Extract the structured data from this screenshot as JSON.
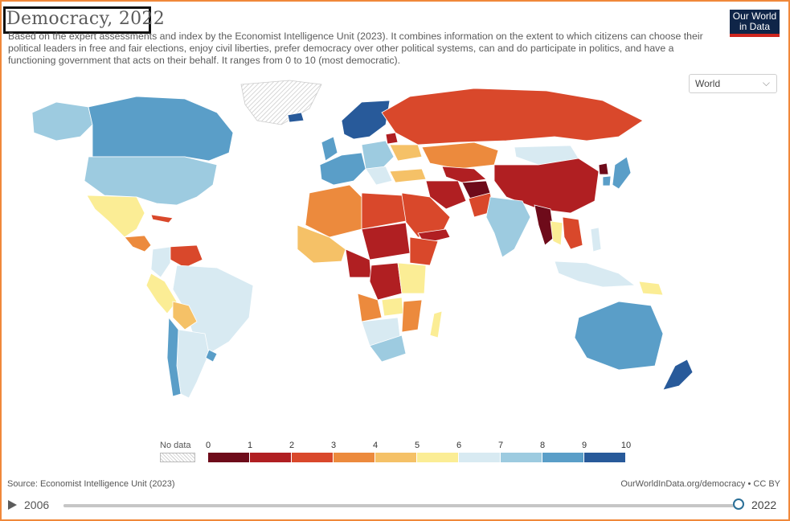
{
  "header": {
    "title": "Democracy, 2022",
    "subtitle": "Based on the expert assessments and index by the Economist Intelligence Unit (2023). It combines information on the extent to which citizens can choose their political leaders in free and fair elections, enjoy civil liberties, prefer democracy over other political systems, can and do participate in politics, and have a functioning government that acts on their behalf. It ranges from 0 to 10 (most democratic).",
    "logo_line1": "Our World",
    "logo_line2": "in Data"
  },
  "region_selector": {
    "selected": "World"
  },
  "legend": {
    "no_data_label": "No data",
    "ticks": [
      "0",
      "1",
      "2",
      "3",
      "4",
      "5",
      "6",
      "7",
      "8",
      "9",
      "10"
    ],
    "bin_colors": [
      "#6e0b1a",
      "#b01f22",
      "#d9482b",
      "#ec8a3d",
      "#f5c167",
      "#fbed95",
      "#d8eaf2",
      "#9dcbe0",
      "#5a9ec8",
      "#285a9a"
    ]
  },
  "footer": {
    "source": "Source: Economist Intelligence Unit (2023)",
    "license": "OurWorldInData.org/democracy • CC BY"
  },
  "timeline": {
    "start_year": "2006",
    "end_year": "2022",
    "selected_fraction": 1.0
  },
  "map_regions": [
    {
      "id": "canada",
      "color": "#5a9ec8"
    },
    {
      "id": "alaska",
      "color": "#9dcbe0"
    },
    {
      "id": "greenland",
      "color": "nodata"
    },
    {
      "id": "usa",
      "color": "#9dcbe0"
    },
    {
      "id": "mexico",
      "color": "#fbed95"
    },
    {
      "id": "central-america",
      "color": "#ec8a3d"
    },
    {
      "id": "cuba",
      "color": "#d9482b"
    },
    {
      "id": "venezuela",
      "color": "#d9482b"
    },
    {
      "id": "colombia",
      "color": "#d8eaf2"
    },
    {
      "id": "peru",
      "color": "#fbed95"
    },
    {
      "id": "brazil",
      "color": "#d8eaf2"
    },
    {
      "id": "bolivia",
      "color": "#f5c167"
    },
    {
      "id": "argentina",
      "color": "#d8eaf2"
    },
    {
      "id": "chile",
      "color": "#5a9ec8"
    },
    {
      "id": "uruguay",
      "color": "#5a9ec8"
    },
    {
      "id": "iceland",
      "color": "#285a9a"
    },
    {
      "id": "scandinavia",
      "color": "#285a9a"
    },
    {
      "id": "uk",
      "color": "#5a9ec8"
    },
    {
      "id": "western-europe",
      "color": "#5a9ec8"
    },
    {
      "id": "eastern-europe",
      "color": "#9dcbe0"
    },
    {
      "id": "balkans",
      "color": "#d8eaf2"
    },
    {
      "id": "belarus",
      "color": "#b01f22"
    },
    {
      "id": "ukraine",
      "color": "#f5c167"
    },
    {
      "id": "turkey",
      "color": "#f5c167"
    },
    {
      "id": "russia",
      "color": "#d9482b"
    },
    {
      "id": "kazakhstan",
      "color": "#ec8a3d"
    },
    {
      "id": "central-asia",
      "color": "#b01f22"
    },
    {
      "id": "mongolia",
      "color": "#d8eaf2"
    },
    {
      "id": "china",
      "color": "#b01f22"
    },
    {
      "id": "korea-north",
      "color": "#6e0b1a"
    },
    {
      "id": "korea-south-japan",
      "color": "#5a9ec8"
    },
    {
      "id": "iran",
      "color": "#b01f22"
    },
    {
      "id": "afghanistan",
      "color": "#6e0b1a"
    },
    {
      "id": "pakistan",
      "color": "#d9482b"
    },
    {
      "id": "india",
      "color": "#9dcbe0"
    },
    {
      "id": "myanmar",
      "color": "#6e0b1a"
    },
    {
      "id": "southeast-asia",
      "color": "#d9482b"
    },
    {
      "id": "thailand",
      "color": "#fbed95"
    },
    {
      "id": "arabia",
      "color": "#d9482b"
    },
    {
      "id": "yemen",
      "color": "#b01f22"
    },
    {
      "id": "north-africa-west",
      "color": "#ec8a3d"
    },
    {
      "id": "libya-egypt",
      "color": "#d9482b"
    },
    {
      "id": "west-africa",
      "color": "#f5c167"
    },
    {
      "id": "sudan-chad",
      "color": "#b01f22"
    },
    {
      "id": "ethiopia",
      "color": "#d9482b"
    },
    {
      "id": "central-africa",
      "color": "#b01f22"
    },
    {
      "id": "drc",
      "color": "#b01f22"
    },
    {
      "id": "east-africa",
      "color": "#fbed95"
    },
    {
      "id": "angola",
      "color": "#ec8a3d"
    },
    {
      "id": "zambia",
      "color": "#fbed95"
    },
    {
      "id": "zimbabwe-mozambique",
      "color": "#ec8a3d"
    },
    {
      "id": "namibia-botswana",
      "color": "#d8eaf2"
    },
    {
      "id": "south-africa",
      "color": "#9dcbe0"
    },
    {
      "id": "madagascar",
      "color": "#fbed95"
    },
    {
      "id": "indonesia",
      "color": "#d8eaf2"
    },
    {
      "id": "philippines",
      "color": "#d8eaf2"
    },
    {
      "id": "papua-new-guinea",
      "color": "#fbed95"
    },
    {
      "id": "australia",
      "color": "#5a9ec8"
    },
    {
      "id": "new-zealand",
      "color": "#285a9a"
    }
  ]
}
